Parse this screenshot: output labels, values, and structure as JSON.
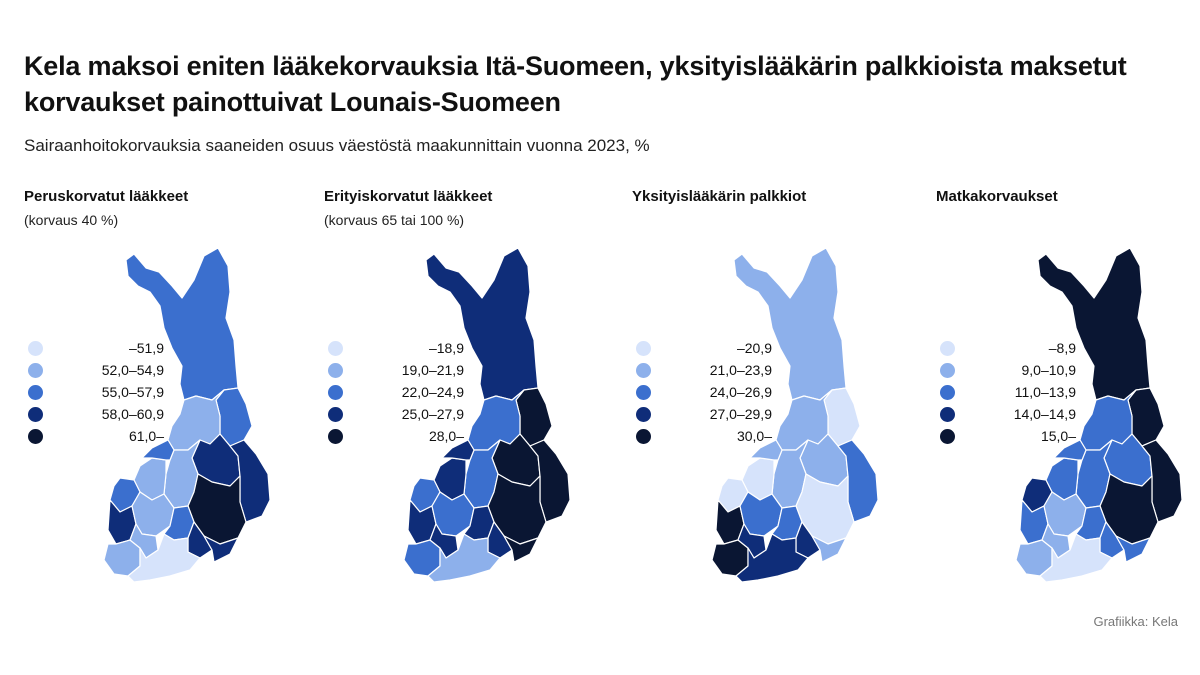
{
  "title": "Kela maksoi eniten lääkekorvauksia Itä-Suomeen, yksityislääkärin palkkioista maksetut korvaukset painottuivat Lounais-Suomeen",
  "subtitle": "Sairaanhoitokorvauksia saaneiden osuus väestöstä maakunnittain vuonna 2023, %",
  "credit": "Grafiikka: Kela",
  "colors": [
    "#d6e3fb",
    "#8db0eb",
    "#3b6fce",
    "#0f2d79",
    "#0a1633"
  ],
  "panels": [
    {
      "title": "Peruskorvatut lääkkeet",
      "note": "(korvaus 40 %)",
      "legend": [
        "–51,9",
        "52,0–54,9",
        "55,0–57,9",
        "58,0–60,9",
        "61,0–"
      ],
      "regions": {
        "lappi": 2,
        "kainuu": 2,
        "pohjois-pohjanmaa": 1,
        "pohjois-savo": 3,
        "pohjois-karjala": 3,
        "keski-suomi": 1,
        "etela-savo": 4,
        "etela-pohjanmaa": 1,
        "pohjanmaa": 2,
        "keski-pohjanmaa": 2,
        "satakunta": 3,
        "pirkanmaa": 1,
        "varsinais-suomi": 1,
        "kanta-hame": 1,
        "paijat-hame": 2,
        "kymenlaakso": 3,
        "etela-karjala": 3,
        "uusimaa": 0
      }
    },
    {
      "title": "Erityiskorvatut lääkkeet",
      "note": "(korvaus 65 tai 100 %)",
      "legend": [
        "–18,9",
        "19,0–21,9",
        "22,0–24,9",
        "25,0–27,9",
        "28,0–"
      ],
      "regions": {
        "lappi": 3,
        "kainuu": 4,
        "pohjois-pohjanmaa": 2,
        "pohjois-savo": 4,
        "pohjois-karjala": 4,
        "keski-suomi": 2,
        "etela-savo": 4,
        "etela-pohjanmaa": 3,
        "pohjanmaa": 2,
        "keski-pohjanmaa": 3,
        "satakunta": 3,
        "pirkanmaa": 2,
        "varsinais-suomi": 2,
        "kanta-hame": 3,
        "paijat-hame": 3,
        "kymenlaakso": 3,
        "etela-karjala": 4,
        "uusimaa": 1
      }
    },
    {
      "title": "Yksityislääkärin palkkiot",
      "note": "",
      "legend": [
        "–20,9",
        "21,0–23,9",
        "24,0–26,9",
        "27,0–29,9",
        "30,0–"
      ],
      "regions": {
        "lappi": 1,
        "kainuu": 0,
        "pohjois-pohjanmaa": 1,
        "pohjois-savo": 1,
        "pohjois-karjala": 2,
        "keski-suomi": 1,
        "etela-savo": 0,
        "etela-pohjanmaa": 0,
        "pohjanmaa": 0,
        "keski-pohjanmaa": 1,
        "satakunta": 4,
        "pirkanmaa": 2,
        "varsinais-suomi": 4,
        "kanta-hame": 3,
        "paijat-hame": 2,
        "kymenlaakso": 3,
        "etela-karjala": 1,
        "uusimaa": 3
      }
    },
    {
      "title": "Matkakorvaukset",
      "note": "",
      "legend": [
        "–8,9",
        "9,0–10,9",
        "11,0–13,9",
        "14,0–14,9",
        "15,0–"
      ],
      "regions": {
        "lappi": 4,
        "kainuu": 4,
        "pohjois-pohjanmaa": 2,
        "pohjois-savo": 2,
        "pohjois-karjala": 4,
        "keski-suomi": 2,
        "etela-savo": 4,
        "etela-pohjanmaa": 2,
        "pohjanmaa": 3,
        "keski-pohjanmaa": 2,
        "satakunta": 2,
        "pirkanmaa": 1,
        "varsinais-suomi": 1,
        "kanta-hame": 1,
        "paijat-hame": 2,
        "kymenlaakso": 2,
        "etela-karjala": 2,
        "uusimaa": 0
      }
    }
  ]
}
